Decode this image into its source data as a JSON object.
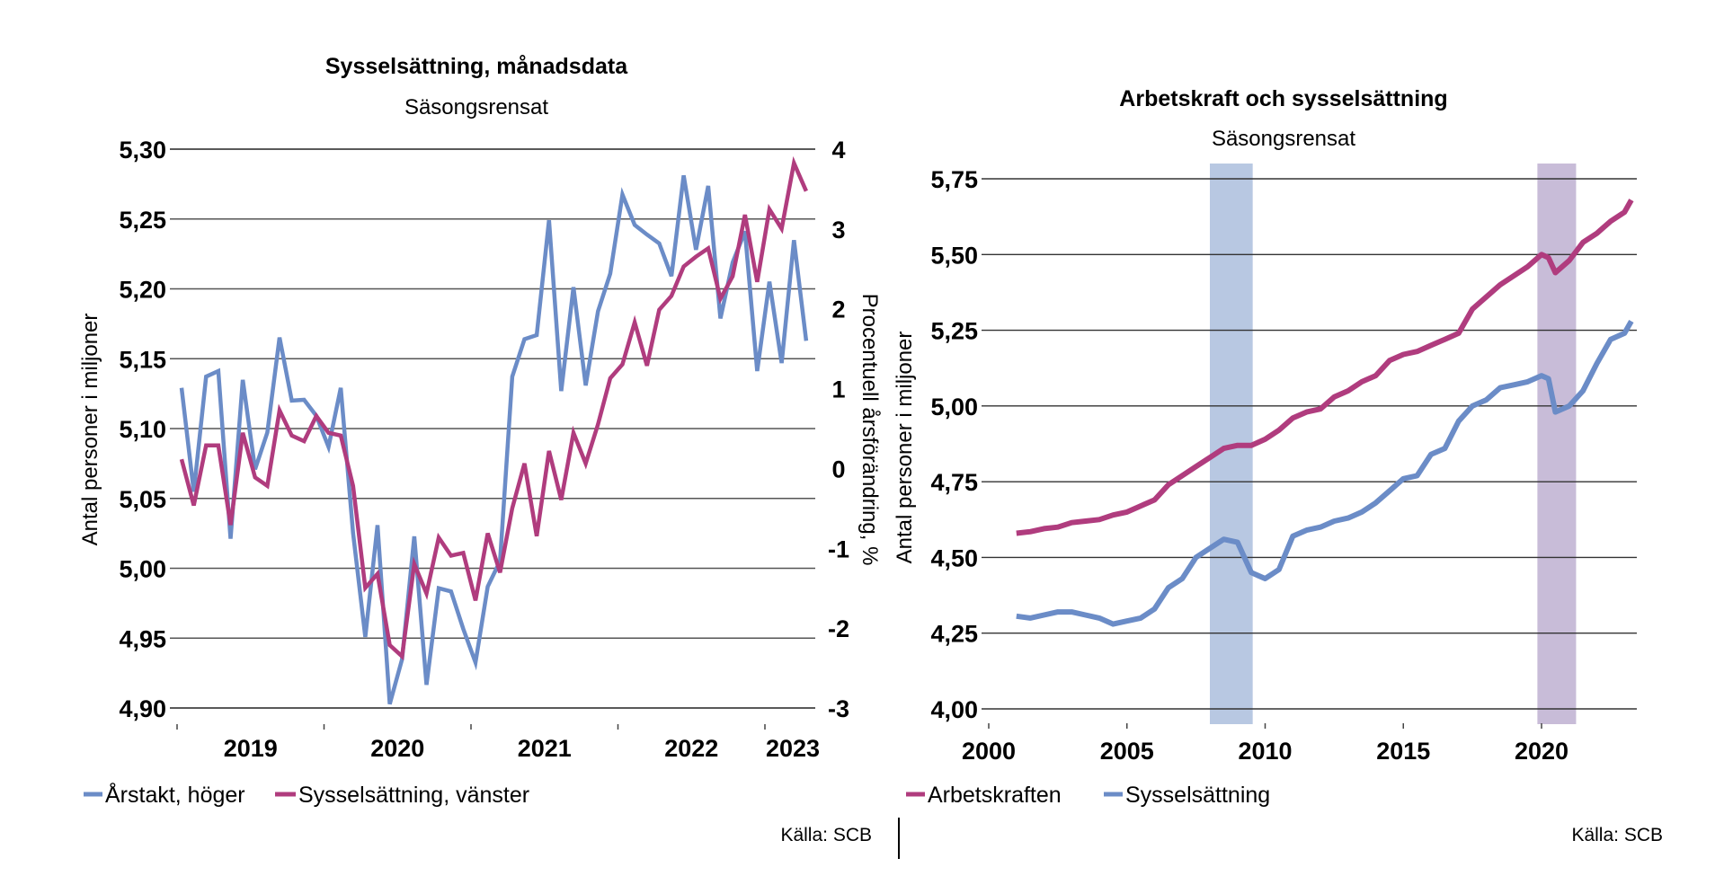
{
  "chart_data": [
    {
      "type": "line",
      "title": "Sysselsättning, månadsdata",
      "subtitle": "Säsongsrensat",
      "ylabel": "Antal personer i miljoner",
      "y2label": "Procentuell årsförändring, %",
      "ylim": [
        4.9,
        5.3
      ],
      "y2lim": [
        -3,
        4
      ],
      "yticks": [
        "5,30",
        "5,25",
        "5,20",
        "5,15",
        "5,10",
        "5,05",
        "5,00",
        "4,95",
        "4,90"
      ],
      "y2ticks": [
        "4",
        "3",
        "2",
        "1",
        "0",
        "-1",
        "-2",
        "-3"
      ],
      "xticks": [
        "2019",
        "2020",
        "2021",
        "2022",
        "2023"
      ],
      "grid": true,
      "legend": "bottom",
      "source": "Källa: SCB",
      "series": [
        {
          "name": "Årstakt, höger",
          "axis": "right",
          "color": "#6b8cc7",
          "values": [
            1.01,
            -0.29,
            1.15,
            1.22,
            -0.88,
            1.11,
            -0.01,
            0.45,
            1.64,
            0.85,
            0.86,
            0.66,
            0.27,
            1.01,
            -0.81,
            -2.11,
            -0.71,
            -2.95,
            -2.39,
            -0.85,
            -2.71,
            -1.5,
            -1.54,
            -2.01,
            -2.43,
            -1.48,
            -1.16,
            1.15,
            1.62,
            1.67,
            3.11,
            0.97,
            2.27,
            1.04,
            1.97,
            2.44,
            3.43,
            3.05,
            2.93,
            2.82,
            2.41,
            3.67,
            2.74,
            3.54,
            1.88,
            2.58,
            2.97,
            1.22,
            2.34,
            1.32,
            2.86,
            1.6
          ]
        },
        {
          "name": "Sysselsättning, vänster",
          "axis": "left",
          "color": "#b03c7e",
          "values": [
            5.078,
            5.045,
            5.088,
            5.088,
            5.031,
            5.097,
            5.065,
            5.059,
            5.113,
            5.095,
            5.091,
            5.109,
            5.097,
            5.095,
            5.059,
            4.986,
            4.996,
            4.945,
            4.937,
            5.003,
            4.982,
            5.022,
            5.009,
            5.011,
            4.977,
            5.025,
            4.997,
            5.043,
            5.075,
            5.023,
            5.084,
            5.049,
            5.097,
            5.075,
            5.103,
            5.136,
            5.146,
            5.176,
            5.145,
            5.185,
            5.195,
            5.216,
            5.223,
            5.229,
            5.193,
            5.209,
            5.253,
            5.205,
            5.257,
            5.243,
            5.29,
            5.27
          ]
        }
      ]
    },
    {
      "type": "line",
      "title": "Arbetskraft och sysselsättning",
      "subtitle": "Säsongsrensat",
      "ylabel": "Antal personer i miljoner",
      "ylim": [
        4.0,
        5.75
      ],
      "xlim": [
        2000,
        2023.5
      ],
      "yticks": [
        "5,75",
        "5,50",
        "5,25",
        "5,00",
        "4,75",
        "4,50",
        "4,25",
        "4,00"
      ],
      "xticks": [
        "2000",
        "2005",
        "2010",
        "2015",
        "2020"
      ],
      "grid": true,
      "legend": "bottom",
      "source": "Källa: SCB",
      "shaded_periods": [
        {
          "from": 2008.0,
          "to": 2009.55,
          "color": "#b8c8e2"
        },
        {
          "from": 2019.85,
          "to": 2021.25,
          "color": "#c8bcd8"
        }
      ],
      "x": [
        2001,
        2001.5,
        2002,
        2002.5,
        2003,
        2003.5,
        2004,
        2004.5,
        2005,
        2005.5,
        2006,
        2006.5,
        2007,
        2007.5,
        2008,
        2008.5,
        2009,
        2009.5,
        2010,
        2010.5,
        2011,
        2011.5,
        2012,
        2012.5,
        2013,
        2013.5,
        2014,
        2014.5,
        2015,
        2015.5,
        2016,
        2016.5,
        2017,
        2017.5,
        2018,
        2018.5,
        2019,
        2019.5,
        2020,
        2020.25,
        2020.5,
        2021,
        2021.5,
        2022,
        2022.5,
        2023,
        2023.25
      ],
      "series": [
        {
          "name": "Arbetskraften",
          "color": "#b03c7e",
          "values": [
            4.58,
            4.585,
            4.595,
            4.6,
            4.615,
            4.62,
            4.625,
            4.64,
            4.65,
            4.67,
            4.69,
            4.74,
            4.77,
            4.8,
            4.83,
            4.86,
            4.87,
            4.87,
            4.89,
            4.92,
            4.96,
            4.98,
            4.99,
            5.03,
            5.05,
            5.08,
            5.1,
            5.15,
            5.17,
            5.18,
            5.2,
            5.22,
            5.24,
            5.32,
            5.36,
            5.4,
            5.43,
            5.46,
            5.5,
            5.49,
            5.44,
            5.48,
            5.54,
            5.57,
            5.61,
            5.64,
            5.68
          ]
        },
        {
          "name": "Sysselsättning",
          "color": "#6b8cc7",
          "values": [
            4.306,
            4.3,
            4.31,
            4.32,
            4.32,
            4.31,
            4.3,
            4.28,
            4.29,
            4.3,
            4.33,
            4.4,
            4.43,
            4.5,
            4.53,
            4.56,
            4.55,
            4.45,
            4.43,
            4.46,
            4.57,
            4.59,
            4.6,
            4.62,
            4.63,
            4.65,
            4.68,
            4.72,
            4.76,
            4.77,
            4.84,
            4.86,
            4.95,
            5.0,
            5.02,
            5.06,
            5.07,
            5.08,
            5.1,
            5.09,
            4.98,
            5.0,
            5.05,
            5.14,
            5.22,
            5.24,
            5.28
          ]
        }
      ]
    }
  ]
}
